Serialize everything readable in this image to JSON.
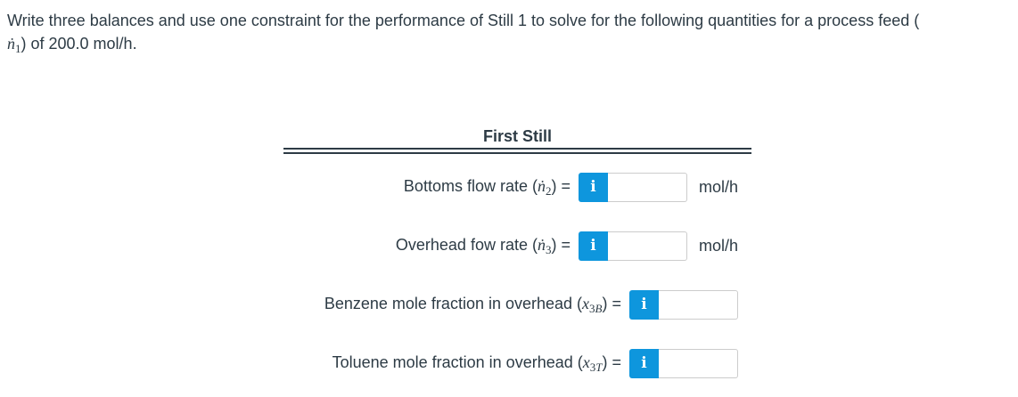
{
  "question": {
    "line1": "Write three balances and use one constraint for the performance of Still 1 to solve for the following quantities for a process feed (",
    "symbol": "ṅ",
    "subscript": "1",
    "line2_rest": ") of 200.0 mol/h."
  },
  "table": {
    "title": "First Still",
    "info_icon_label": "i",
    "rows": [
      {
        "label_pre": "Bottoms flow rate (",
        "symbol": "ṅ",
        "sub_num": "2",
        "sub_letter": "",
        "label_post": ") =",
        "input_value": "",
        "unit": "mol/h"
      },
      {
        "label_pre": "Overhead fow rate (",
        "symbol": "ṅ",
        "sub_num": "3",
        "sub_letter": "",
        "label_post": ") =",
        "input_value": "",
        "unit": "mol/h"
      },
      {
        "label_pre": "Benzene mole fraction in overhead (",
        "symbol": "x",
        "sub_num": "3",
        "sub_letter": "B",
        "label_post": ") =",
        "input_value": "",
        "unit": ""
      },
      {
        "label_pre": "Toluene mole fraction in overhead (",
        "symbol": "x",
        "sub_num": "3",
        "sub_letter": "T",
        "label_post": ") =",
        "input_value": "",
        "unit": ""
      }
    ]
  },
  "colors": {
    "accent_blue": "#0e96dd",
    "text": "#2d3b45",
    "rule": "#2d3b45",
    "input_border": "#cccccc"
  }
}
